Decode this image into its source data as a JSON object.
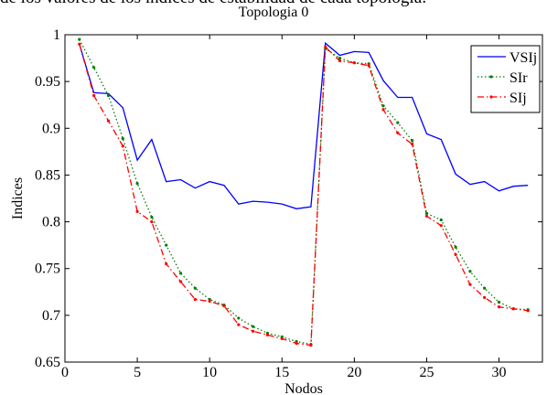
{
  "caption_fragment": "de los valores de los índices de estabilidad de cada topología:",
  "chart_data": {
    "type": "line",
    "title": "Topologia 0",
    "xlabel": "Nodos",
    "ylabel": "Indices",
    "xlim": [
      0,
      33
    ],
    "ylim": [
      0.65,
      1.0
    ],
    "xticks": [
      0,
      5,
      10,
      15,
      20,
      25,
      30
    ],
    "yticks": [
      0.65,
      0.7,
      0.75,
      0.8,
      0.85,
      0.9,
      0.95,
      1.0
    ],
    "ytick_labels": [
      "0.65",
      "0.7",
      "0.75",
      "0.8",
      "0.85",
      "0.9",
      "0.95",
      "1"
    ],
    "legend_position": "top-right",
    "grid": false,
    "x": [
      1,
      2,
      3,
      4,
      5,
      6,
      7,
      8,
      9,
      10,
      11,
      12,
      13,
      14,
      15,
      16,
      17,
      18,
      19,
      20,
      21,
      22,
      23,
      24,
      25,
      26,
      27,
      28,
      29,
      30,
      31,
      32
    ],
    "series": [
      {
        "name": "VSIj",
        "color": "#0000ff",
        "style": "solid",
        "marker": "none",
        "values": [
          0.99,
          0.938,
          0.937,
          0.922,
          0.866,
          0.888,
          0.843,
          0.845,
          0.836,
          0.843,
          0.839,
          0.819,
          0.822,
          0.821,
          0.819,
          0.814,
          0.816,
          0.991,
          0.978,
          0.982,
          0.981,
          0.951,
          0.933,
          0.933,
          0.894,
          0.888,
          0.851,
          0.84,
          0.843,
          0.833,
          0.838,
          0.839
        ]
      },
      {
        "name": "SIr",
        "color": "#007f00",
        "style": "dotted",
        "marker": "dot",
        "values": [
          0.995,
          0.965,
          0.935,
          0.889,
          0.841,
          0.805,
          0.775,
          0.745,
          0.729,
          0.717,
          0.711,
          0.697,
          0.688,
          0.681,
          0.677,
          0.672,
          0.669,
          0.985,
          0.975,
          0.97,
          0.969,
          0.924,
          0.906,
          0.887,
          0.809,
          0.802,
          0.773,
          0.747,
          0.729,
          0.714,
          0.707,
          0.706
        ]
      },
      {
        "name": "SIj",
        "color": "#ff0000",
        "style": "dashdot",
        "marker": "dot",
        "values": [
          0.99,
          0.935,
          0.908,
          0.881,
          0.811,
          0.8,
          0.755,
          0.736,
          0.717,
          0.715,
          0.71,
          0.69,
          0.683,
          0.679,
          0.675,
          0.67,
          0.668,
          0.987,
          0.972,
          0.97,
          0.967,
          0.92,
          0.895,
          0.883,
          0.806,
          0.796,
          0.765,
          0.733,
          0.719,
          0.709,
          0.707,
          0.705
        ]
      }
    ]
  }
}
